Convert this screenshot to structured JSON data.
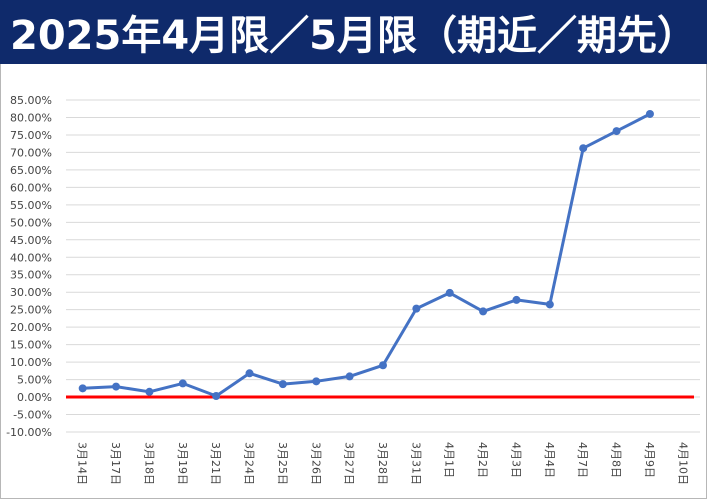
{
  "title": "2025年4月限／5月限（期近／期先）",
  "colors": {
    "header_bg": "#0f2a6b",
    "line": "#4472c4",
    "zero_line": "#ff0000",
    "grid": "#d9d9d9"
  },
  "chart_data": {
    "type": "line",
    "title": "2025年4月限／5月限（期近／期先）",
    "xlabel": "",
    "ylabel": "",
    "categories": [
      "3月14日",
      "3月17日",
      "3月18日",
      "3月19日",
      "3月21日",
      "3月24日",
      "3月25日",
      "3月26日",
      "3月27日",
      "3月28日",
      "3月31日",
      "4月1日",
      "4月2日",
      "4月3日",
      "4月4日",
      "4月7日",
      "4月8日",
      "4月9日",
      "4月10日"
    ],
    "series": [
      {
        "values": [
          2.5,
          3.0,
          1.5,
          3.9,
          0.3,
          6.8,
          3.7,
          4.5,
          5.9,
          9.1,
          25.3,
          29.8,
          24.5,
          27.8,
          26.5,
          71.2,
          76.1,
          81.0,
          null
        ]
      }
    ],
    "reference_line": {
      "value": 0
    },
    "ylim": [
      -10,
      85
    ],
    "ytick_step": 5,
    "ytick_format": "percent_2dp",
    "grid": true,
    "legend": "none"
  }
}
